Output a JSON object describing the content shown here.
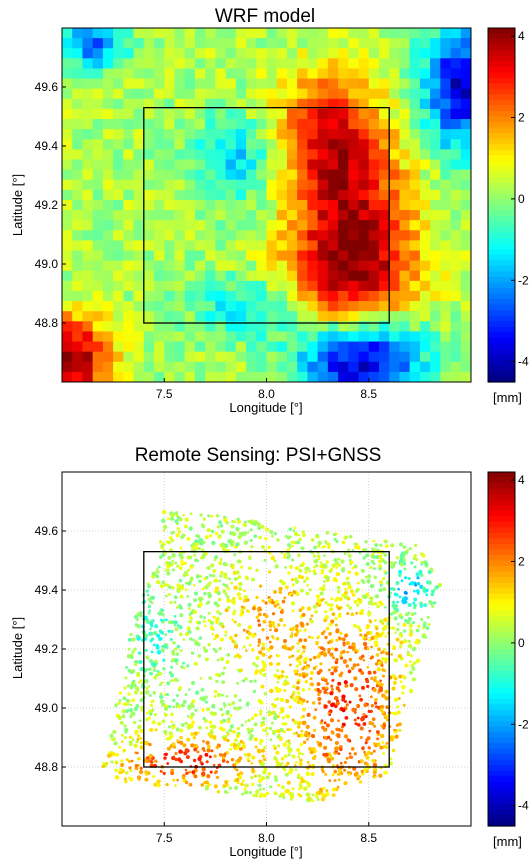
{
  "chart_data": [
    {
      "type": "heatmap",
      "title": "WRF model",
      "xlabel": "Longitude [°]",
      "ylabel": "Latitude [°]",
      "xlim": [
        7.0,
        9.0
      ],
      "ylim": [
        48.6,
        49.8
      ],
      "xticks": [
        "7.5",
        "8.0",
        "8.5"
      ],
      "yticks": [
        "48.8",
        "49.0",
        "49.2",
        "49.4",
        "49.6"
      ],
      "clim": [
        -4.5,
        4.2
      ],
      "colorbar_ticks": [
        "4",
        "2",
        "0",
        "-2",
        "-4"
      ],
      "colorbar_unit": "[mm]",
      "grid": false,
      "box": {
        "lon": [
          7.4,
          8.6
        ],
        "lat": [
          48.8,
          49.53
        ]
      },
      "anomalies": [
        {
          "lon": 8.42,
          "lat": 49.02,
          "amp": 4.2,
          "sx": 0.3,
          "sy": 0.35
        },
        {
          "lon": 8.3,
          "lat": 49.45,
          "amp": 2.6,
          "sx": 0.25,
          "sy": 0.2
        },
        {
          "lon": 7.05,
          "lat": 48.68,
          "amp": 4.0,
          "sx": 0.18,
          "sy": 0.14
        },
        {
          "lon": 8.45,
          "lat": 48.68,
          "amp": -5.5,
          "sx": 0.3,
          "sy": 0.15
        },
        {
          "lon": 8.95,
          "lat": 49.6,
          "amp": -4.0,
          "sx": 0.18,
          "sy": 0.22
        },
        {
          "lon": 7.15,
          "lat": 49.75,
          "amp": -3.0,
          "sx": 0.15,
          "sy": 0.08
        },
        {
          "lon": 7.85,
          "lat": 49.35,
          "amp": -1.8,
          "sx": 0.2,
          "sy": 0.15
        },
        {
          "lon": 7.9,
          "lat": 48.85,
          "amp": -1.6,
          "sx": 0.25,
          "sy": 0.1
        }
      ],
      "base_value": 0.2
    },
    {
      "type": "scatter",
      "title": "Remote Sensing: PSI+GNSS",
      "xlabel": "Longitude [°]",
      "ylabel": "Latitude [°]",
      "xlim": [
        7.0,
        9.0
      ],
      "ylim": [
        48.6,
        49.8
      ],
      "xticks": [
        "7.5",
        "8.0",
        "8.5"
      ],
      "yticks": [
        "48.8",
        "49.0",
        "49.2",
        "49.4",
        "49.6"
      ],
      "clim": [
        -4.5,
        4.2
      ],
      "colorbar_ticks": [
        "4",
        "2",
        "0",
        "-2",
        "-4"
      ],
      "colorbar_unit": "[mm]",
      "grid": true,
      "box": {
        "lon": [
          7.4,
          8.6
        ],
        "lat": [
          48.8,
          49.53
        ]
      },
      "coverage_polygon": [
        [
          7.5,
          49.68
        ],
        [
          8.75,
          49.55
        ],
        [
          8.85,
          49.42
        ],
        [
          8.6,
          48.78
        ],
        [
          8.25,
          48.68
        ],
        [
          7.3,
          48.75
        ],
        [
          7.2,
          48.8
        ],
        [
          7.35,
          49.3
        ],
        [
          7.48,
          49.55
        ]
      ],
      "point_count": 2600,
      "value_anomalies": [
        {
          "lon": 8.4,
          "lat": 49.0,
          "amp": 2.4,
          "sx": 0.25,
          "sy": 0.3
        },
        {
          "lon": 7.6,
          "lat": 48.82,
          "amp": 2.6,
          "sx": 0.3,
          "sy": 0.08
        },
        {
          "lon": 8.0,
          "lat": 49.3,
          "amp": 1.4,
          "sx": 0.2,
          "sy": 0.15
        },
        {
          "lon": 7.45,
          "lat": 49.25,
          "amp": -1.2,
          "sx": 0.12,
          "sy": 0.12
        },
        {
          "lon": 8.7,
          "lat": 49.4,
          "amp": -2.2,
          "sx": 0.1,
          "sy": 0.08
        }
      ],
      "base_value": 0.3
    }
  ]
}
